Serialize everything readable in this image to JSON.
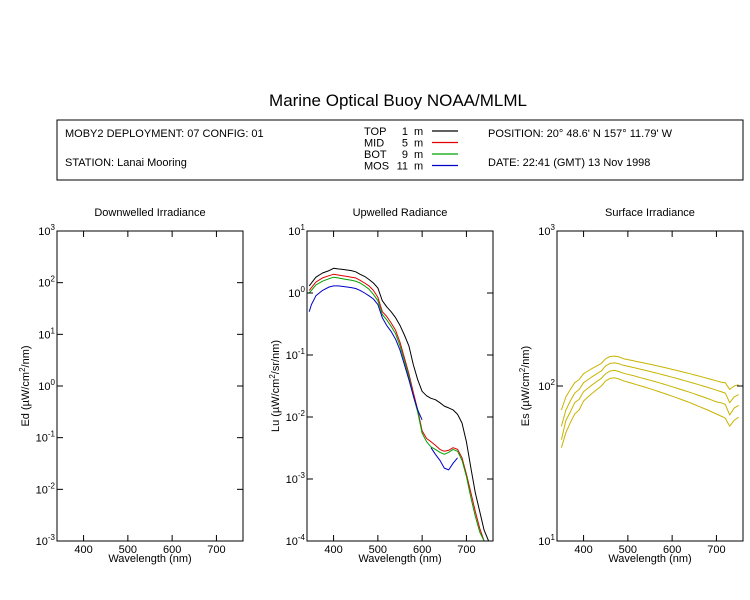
{
  "figure": {
    "title": "Marine Optical Buoy NOAA/MLML"
  },
  "info": {
    "deployment": "MOBY2 DEPLOYMENT: 07 CONFIG: 01",
    "station": "STATION: Lanai Mooring",
    "position": "POSITION: 20° 48.6' N   157° 11.79' W",
    "date": "DATE: 22:41 (GMT) 13 Nov 1998"
  },
  "legend": [
    {
      "name": "TOP",
      "depth": "1",
      "unit": "m",
      "color": "#000000"
    },
    {
      "name": "MID",
      "depth": "5",
      "unit": "m",
      "color": "#e00000"
    },
    {
      "name": "BOT",
      "depth": "9",
      "unit": "m",
      "color": "#00a000"
    },
    {
      "name": "MOS",
      "depth": "11",
      "unit": "m",
      "color": "#0000c8"
    }
  ],
  "chart_data": [
    {
      "type": "line",
      "title": "Downwelled Irradiance",
      "xlabel": "Wavelength (nm)",
      "ylabel_main": "Ed  (µW/cm",
      "ylabel_sup": "2",
      "ylabel_end": "/nm)",
      "xlim": [
        340,
        760
      ],
      "ylim": [
        0.001,
        1000
      ],
      "yscale": "log",
      "xticks": [
        400,
        500,
        600,
        700
      ],
      "yticks": [
        {
          "value": 1000,
          "base": "10",
          "exp": "3"
        },
        {
          "value": 100,
          "base": "10",
          "exp": "2"
        },
        {
          "value": 10,
          "base": "10",
          "exp": "1"
        },
        {
          "value": 1,
          "base": "10",
          "exp": "0"
        },
        {
          "value": 0.1,
          "base": "10",
          "exp": "-1"
        },
        {
          "value": 0.01,
          "base": "10",
          "exp": "-2"
        },
        {
          "value": 0.001,
          "base": "10",
          "exp": "-3"
        }
      ],
      "series": []
    },
    {
      "type": "line",
      "title": "Upwelled Radiance",
      "xlabel": "Wavelength (nm)",
      "ylabel_main": "Lu  (µW/cm",
      "ylabel_sup": "2",
      "ylabel_end": "/sr/nm)",
      "xlim": [
        340,
        760
      ],
      "ylim": [
        0.0001,
        10
      ],
      "yscale": "log",
      "xticks": [
        400,
        500,
        600,
        700
      ],
      "yticks": [
        {
          "value": 10,
          "base": "10",
          "exp": "1"
        },
        {
          "value": 1,
          "base": "10",
          "exp": "0"
        },
        {
          "value": 0.1,
          "base": "10",
          "exp": "-1"
        },
        {
          "value": 0.01,
          "base": "10",
          "exp": "-2"
        },
        {
          "value": 0.001,
          "base": "10",
          "exp": "-3"
        },
        {
          "value": 0.0001,
          "base": "10",
          "exp": "-4"
        }
      ],
      "series": [
        {
          "color": "#000000",
          "x": [
            345,
            360,
            375,
            390,
            400,
            410,
            420,
            430,
            440,
            450,
            460,
            470,
            480,
            490,
            500,
            510,
            520,
            530,
            540,
            550,
            560,
            570,
            580,
            590,
            600,
            610,
            620,
            630,
            640,
            650,
            660,
            670,
            680,
            690,
            700,
            710,
            720,
            730,
            740,
            750
          ],
          "y": [
            1.3,
            1.8,
            2.1,
            2.3,
            2.5,
            2.45,
            2.4,
            2.35,
            2.3,
            2.2,
            2.0,
            1.85,
            1.65,
            1.45,
            1.2,
            0.75,
            0.6,
            0.5,
            0.4,
            0.3,
            0.21,
            0.14,
            0.07,
            0.04,
            0.026,
            0.022,
            0.02,
            0.019,
            0.017,
            0.015,
            0.014,
            0.013,
            0.011,
            0.008,
            0.004,
            0.0015,
            0.0006,
            0.0003,
            0.00015,
            0.0001
          ]
        },
        {
          "color": "#e00000",
          "x": [
            345,
            360,
            375,
            390,
            400,
            410,
            420,
            430,
            440,
            450,
            460,
            470,
            480,
            490,
            500,
            510,
            520,
            530,
            540,
            550,
            560,
            570,
            580,
            590,
            600,
            610,
            620,
            630,
            640,
            650,
            660,
            670,
            680,
            690,
            700,
            710,
            720,
            730,
            740,
            750
          ],
          "y": [
            1.1,
            1.5,
            1.75,
            1.9,
            2.0,
            1.95,
            1.9,
            1.85,
            1.8,
            1.75,
            1.6,
            1.45,
            1.3,
            1.1,
            0.85,
            0.5,
            0.42,
            0.33,
            0.25,
            0.16,
            0.09,
            0.05,
            0.025,
            0.013,
            0.006,
            0.0045,
            0.004,
            0.0035,
            0.003,
            0.0028,
            0.0029,
            0.0032,
            0.003,
            0.0022,
            0.0012,
            0.0006,
            0.0003,
            0.00016,
            0.0001,
            0.0001
          ]
        },
        {
          "color": "#00a000",
          "x": [
            345,
            360,
            375,
            390,
            400,
            410,
            420,
            430,
            440,
            450,
            460,
            470,
            480,
            490,
            500,
            510,
            520,
            530,
            540,
            550,
            560,
            570,
            580,
            590,
            600,
            610,
            620,
            630,
            640,
            650,
            660,
            670,
            680,
            690,
            700,
            710,
            720,
            730,
            740,
            750
          ],
          "y": [
            1.0,
            1.35,
            1.55,
            1.7,
            1.8,
            1.75,
            1.7,
            1.65,
            1.6,
            1.55,
            1.45,
            1.3,
            1.15,
            0.95,
            0.75,
            0.45,
            0.37,
            0.29,
            0.22,
            0.14,
            0.08,
            0.045,
            0.022,
            0.012,
            0.0055,
            0.004,
            0.0033,
            0.003,
            0.0027,
            0.0025,
            0.0027,
            0.003,
            0.0028,
            0.002,
            0.0011,
            0.0005,
            0.00025,
            0.00014,
            0.0001,
            0.0001
          ]
        },
        {
          "color": "#0000c8",
          "x": [
            345,
            350,
            360,
            375,
            390,
            400,
            410,
            420,
            430,
            440,
            450,
            460,
            470,
            480,
            490,
            500,
            510,
            520,
            530,
            540,
            550,
            560,
            570,
            580,
            590,
            600
          ],
          "y": [
            0.5,
            0.65,
            0.9,
            1.1,
            1.25,
            1.3,
            1.3,
            1.28,
            1.25,
            1.22,
            1.18,
            1.1,
            1.0,
            0.9,
            0.8,
            0.65,
            0.4,
            0.3,
            0.24,
            0.18,
            0.12,
            0.07,
            0.04,
            0.022,
            0.013,
            0.009
          ]
        },
        {
          "color": "#0000c8",
          "x": [
            620,
            630,
            640,
            650,
            660,
            670,
            680
          ],
          "y": [
            0.0032,
            0.0025,
            0.002,
            0.0015,
            0.0014,
            0.0018,
            0.0022
          ]
        }
      ]
    },
    {
      "type": "line",
      "title": "Surface Irradiance",
      "xlabel": "Wavelength (nm)",
      "ylabel_main": "Es  (µW/cm",
      "ylabel_sup": "2",
      "ylabel_end": "/nm)",
      "xlim": [
        340,
        760
      ],
      "ylim": [
        10,
        1000
      ],
      "yscale": "log",
      "xticks": [
        400,
        500,
        600,
        700
      ],
      "yticks": [
        {
          "value": 1000,
          "base": "10",
          "exp": "3"
        },
        {
          "value": 100,
          "base": "10",
          "exp": "2"
        },
        {
          "value": 10,
          "base": "10",
          "exp": "1"
        }
      ],
      "series": [
        {
          "color": "#c8b400",
          "x": [
            350,
            360,
            370,
            380,
            390,
            400,
            410,
            420,
            430,
            440,
            450,
            460,
            470,
            480,
            490,
            500,
            510,
            520,
            530,
            540,
            550,
            560,
            570,
            580,
            590,
            600,
            610,
            620,
            630,
            640,
            650,
            660,
            670,
            680,
            690,
            700,
            710,
            720,
            730,
            740,
            750
          ],
          "y": [
            70,
            85,
            95,
            105,
            110,
            120,
            125,
            130,
            135,
            140,
            150,
            155,
            156,
            154,
            150,
            148,
            146,
            144,
            142,
            140,
            138,
            136,
            134,
            132,
            130,
            128,
            126,
            124,
            122,
            120,
            118,
            116,
            114,
            112,
            110,
            108,
            106,
            105,
            95,
            100,
            102
          ]
        },
        {
          "color": "#c8b400",
          "x": [
            350,
            360,
            370,
            380,
            390,
            400,
            410,
            420,
            430,
            440,
            450,
            460,
            470,
            480,
            490,
            500,
            510,
            520,
            530,
            540,
            550,
            560,
            570,
            580,
            590,
            600,
            610,
            620,
            630,
            640,
            650,
            660,
            670,
            680,
            690,
            700,
            710,
            720,
            730,
            740,
            750
          ],
          "y": [
            55,
            70,
            80,
            90,
            95,
            105,
            110,
            115,
            120,
            125,
            135,
            140,
            141,
            139,
            136,
            134,
            132,
            130,
            128,
            126,
            124,
            122,
            120,
            118,
            116,
            114,
            112,
            110,
            108,
            106,
            104,
            102,
            100,
            98,
            96,
            94,
            92,
            90,
            78,
            85,
            88
          ]
        },
        {
          "color": "#c8b400",
          "x": [
            350,
            360,
            370,
            380,
            390,
            400,
            410,
            420,
            430,
            440,
            450,
            460,
            470,
            480,
            490,
            500,
            510,
            520,
            530,
            540,
            550,
            560,
            570,
            580,
            590,
            600,
            610,
            620,
            630,
            640,
            650,
            660,
            670,
            680,
            690,
            700,
            710,
            720,
            730,
            740,
            750
          ],
          "y": [
            45,
            60,
            68,
            78,
            82,
            92,
            97,
            102,
            107,
            112,
            120,
            125,
            126,
            124,
            121,
            119,
            117,
            115,
            113,
            111,
            109,
            107,
            105,
            103,
            101,
            99,
            97,
            95,
            93,
            91,
            89,
            87,
            85,
            83,
            81,
            79,
            78,
            76,
            65,
            72,
            75
          ]
        },
        {
          "color": "#c8b400",
          "x": [
            350,
            360,
            370,
            380,
            390,
            400,
            410,
            420,
            430,
            440,
            450,
            460,
            470,
            480,
            490,
            500,
            510,
            520,
            530,
            540,
            550,
            560,
            570,
            580,
            590,
            600,
            610,
            620,
            630,
            640,
            650,
            660,
            670,
            680,
            690,
            700,
            710,
            720,
            730,
            740,
            750
          ],
          "y": [
            40,
            50,
            58,
            66,
            70,
            80,
            85,
            90,
            95,
            100,
            108,
            112,
            113,
            111,
            108,
            106,
            104,
            102,
            100,
            98,
            96,
            94,
            92,
            90,
            88,
            86,
            84,
            82,
            80,
            78,
            76,
            74,
            72,
            70,
            68,
            66,
            64,
            62,
            55,
            60,
            63
          ]
        }
      ]
    }
  ]
}
